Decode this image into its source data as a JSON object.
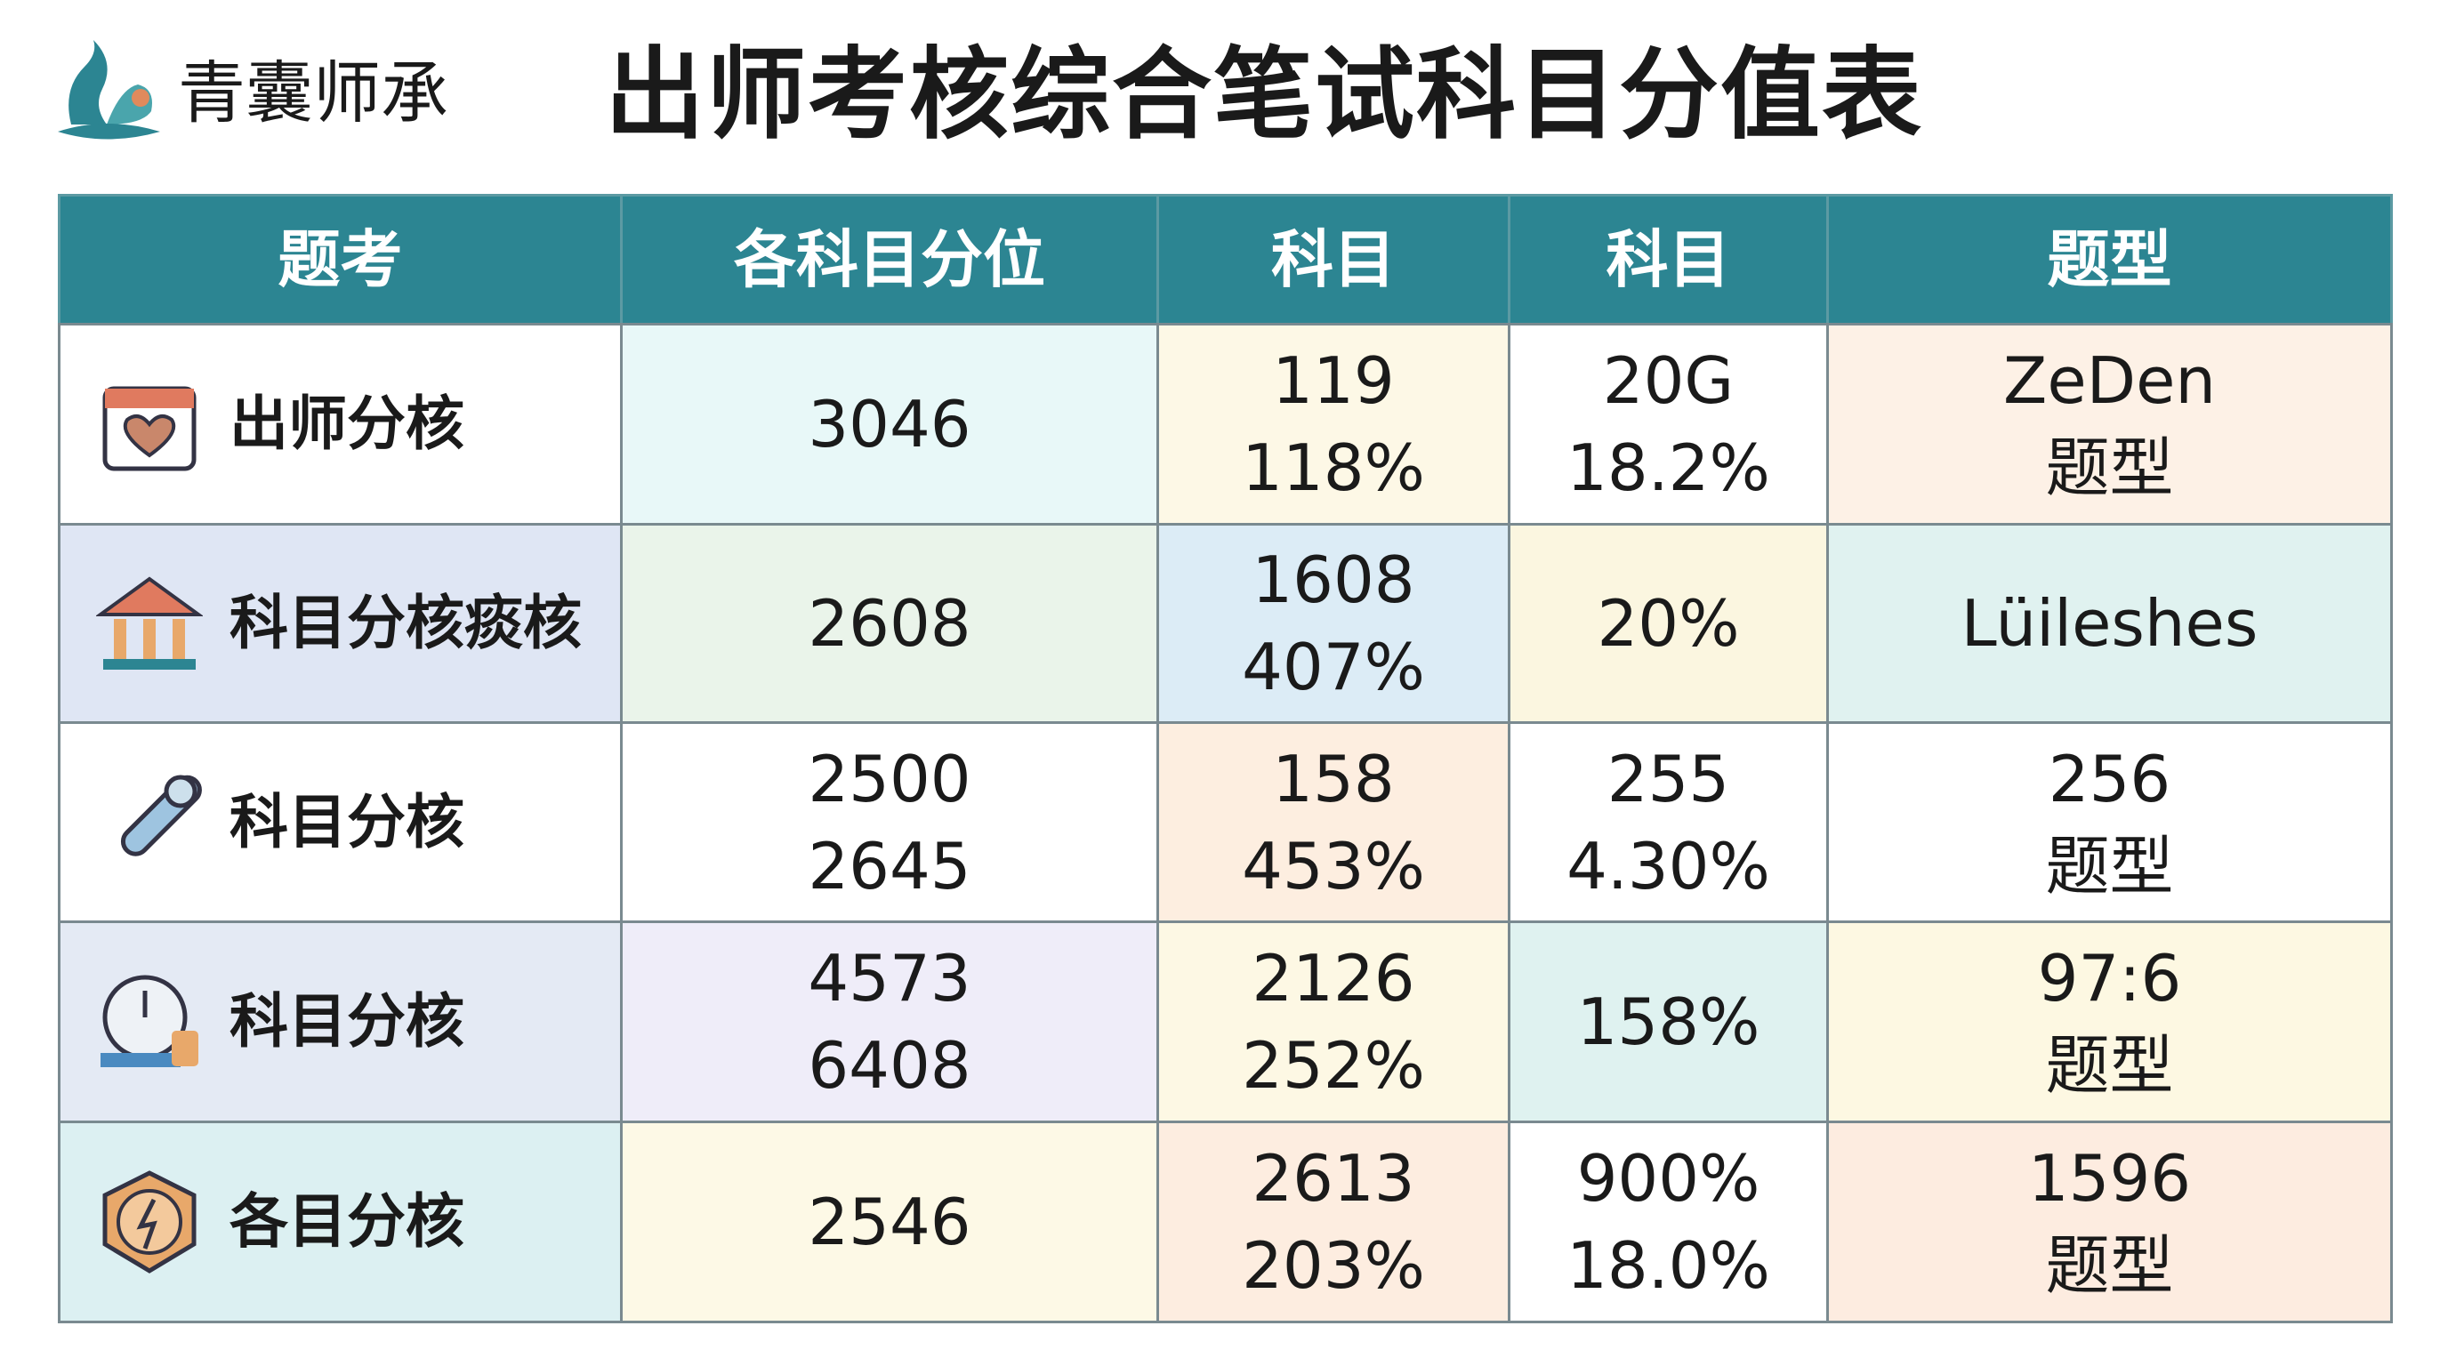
{
  "header": {
    "logo_text": "青囊师承",
    "title": "出师考核综合笔试科目分值表"
  },
  "table": {
    "columns": [
      "题考",
      "各科目分位",
      "科目",
      "科目",
      "题型"
    ],
    "rows": [
      {
        "label": "出师分核",
        "cells": [
          [
            "3046"
          ],
          [
            "119",
            "118%"
          ],
          [
            "20G",
            "18.2%"
          ],
          [
            "ZeDen",
            "题型"
          ]
        ]
      },
      {
        "label": "科目分核痰核",
        "cells": [
          [
            "2608"
          ],
          [
            "1608",
            "407%"
          ],
          [
            "20%"
          ],
          [
            "Lüileshes"
          ]
        ]
      },
      {
        "label": "科目分核",
        "cells": [
          [
            "2500",
            "2645"
          ],
          [
            "158",
            "453%"
          ],
          [
            "255",
            "4.30%"
          ],
          [
            "256",
            "题型"
          ]
        ]
      },
      {
        "label": "科目分核",
        "cells": [
          [
            "4573",
            "6408"
          ],
          [
            "2126",
            "252%"
          ],
          [
            "158%"
          ],
          [
            "97:6",
            "题型"
          ]
        ]
      },
      {
        "label": "各目分核",
        "cells": [
          [
            "2546"
          ],
          [
            "2613",
            "203%"
          ],
          [
            "900%",
            "18.0%"
          ],
          [
            "1596",
            "题型"
          ]
        ]
      }
    ]
  }
}
